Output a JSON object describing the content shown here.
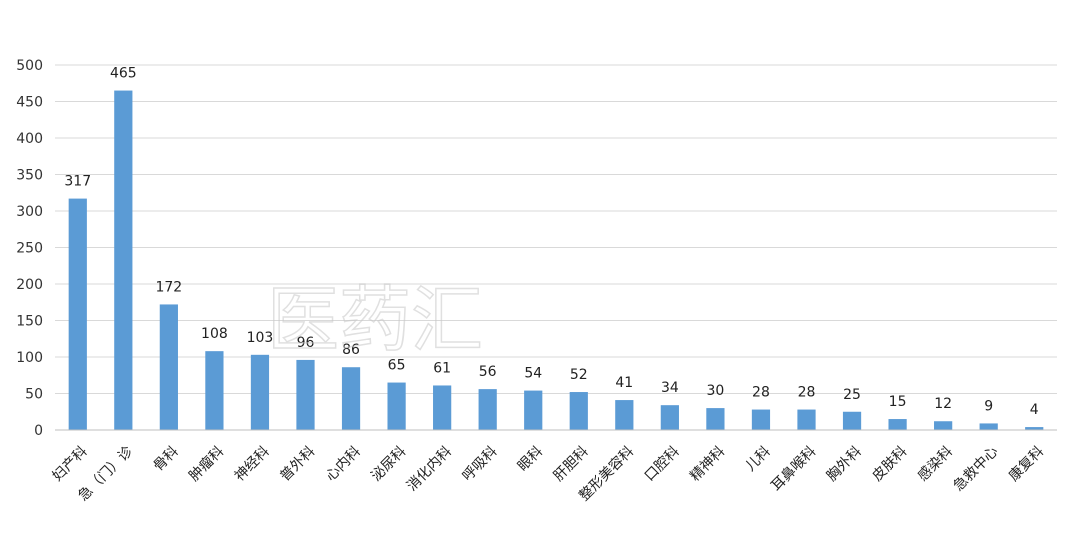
{
  "chart_data": {
    "type": "bar",
    "title": "",
    "xlabel": "",
    "ylabel": "",
    "ylim": [
      0,
      500
    ],
    "yticks": [
      0,
      50,
      100,
      150,
      200,
      250,
      300,
      350,
      400,
      450,
      500
    ],
    "grid": true,
    "bar_color": "#5b9bd5",
    "categories": [
      "妇产科",
      "急（门）诊",
      "骨科",
      "肿瘤科",
      "神经科",
      "普外科",
      "心内科",
      "泌尿科",
      "消化内科",
      "呼吸科",
      "眼科",
      "肝胆科",
      "整形美容科",
      "口腔科",
      "精神科",
      "儿科",
      "耳鼻喉科",
      "胸外科",
      "皮肤科",
      "感染科",
      "急救中心",
      "康复科"
    ],
    "values": [
      317,
      465,
      172,
      108,
      103,
      96,
      86,
      65,
      61,
      56,
      54,
      52,
      41,
      34,
      30,
      28,
      28,
      25,
      15,
      12,
      9,
      4
    ],
    "watermark": "医药汇"
  }
}
